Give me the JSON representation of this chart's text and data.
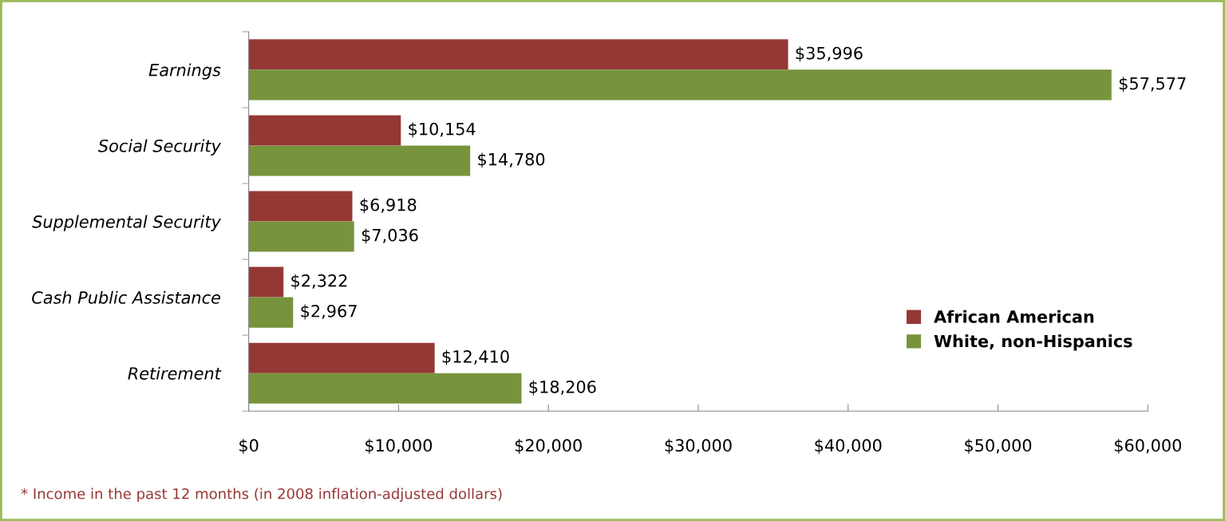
{
  "chart_data": {
    "type": "bar",
    "orientation": "horizontal",
    "categories": [
      "Earnings",
      "Social Security",
      "Supplemental Security",
      "Cash Public Assistance",
      "Retirement"
    ],
    "series": [
      {
        "name": "African American",
        "color": "#953735",
        "values": [
          35996,
          10154,
          6918,
          2322,
          12410
        ],
        "value_labels": [
          "$35,996",
          "$10,154",
          "$6,918",
          "$2,322",
          "$12,410"
        ]
      },
      {
        "name": "White, non-Hispanics",
        "color": "#77933c",
        "values": [
          57577,
          14780,
          7036,
          2967,
          18206
        ],
        "value_labels": [
          "$57,577",
          "$14,780",
          "$7,036",
          "$2,967",
          "$18,206"
        ]
      }
    ],
    "xlim": [
      0,
      60000
    ],
    "xticks": [
      {
        "value": 0,
        "label": "$0"
      },
      {
        "value": 10000,
        "label": "$10,000"
      },
      {
        "value": 20000,
        "label": "$20,000"
      },
      {
        "value": 30000,
        "label": "$30,000"
      },
      {
        "value": 40000,
        "label": "$40,000"
      },
      {
        "value": 50000,
        "label": "$50,000"
      },
      {
        "value": 60000,
        "label": "$60,000"
      }
    ],
    "grid": false,
    "legend": "bottom right",
    "annotations": [
      "* Income in the past 12 months (in 2008 inflation-adjusted dollars)"
    ]
  }
}
